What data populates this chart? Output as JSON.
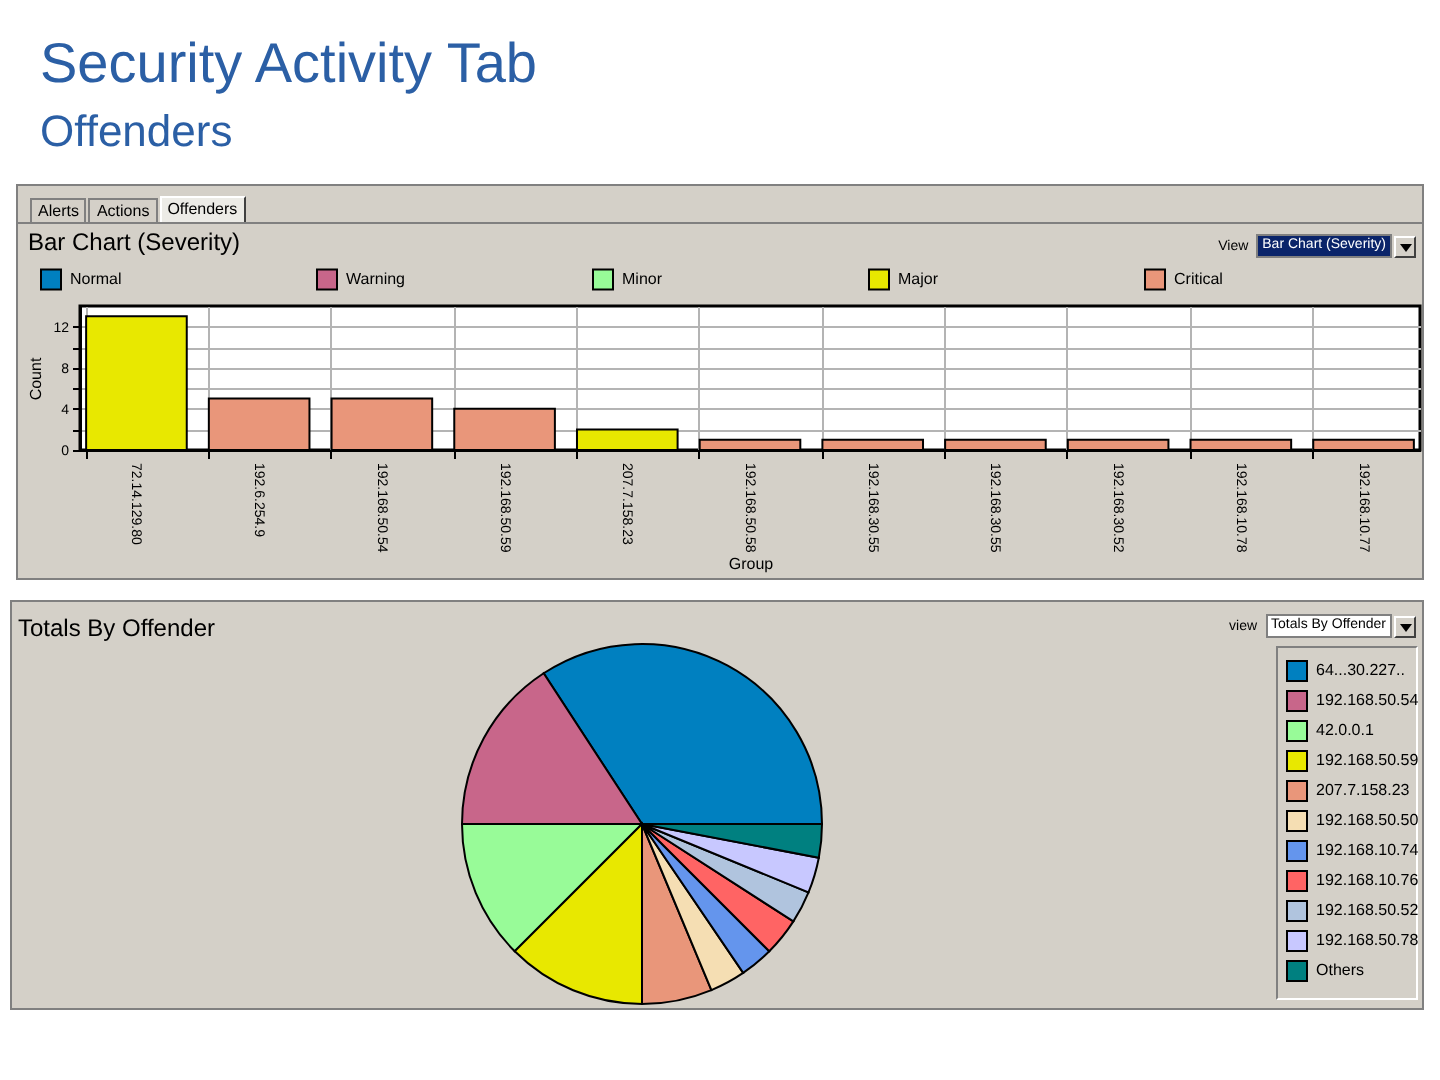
{
  "chart_data": [
    {
      "type": "other",
      "title": "Security Activity Tab",
      "subtitle": "Offenders"
    },
    {
      "type": "bar",
      "title": "Bar Chart (Severity)",
      "categories": [
        "72.14.129.80",
        "192.6.254.9",
        "192.168.50.54",
        "192.168.50.59",
        "207.7.158.23",
        "192.168.50.58",
        "192.168.30.55",
        "192.168.30.55",
        "192.168.30.52",
        "192.168.10.78",
        "192.168.10.77"
      ],
      "series": [
        {
          "name": "Normal",
          "color": "#0080c0",
          "values": [
            null,
            null,
            null,
            null,
            null,
            null,
            null,
            null,
            null,
            null,
            null
          ]
        },
        {
          "name": "Warning",
          "color": "#c8668a",
          "values": [
            null,
            null,
            null,
            null,
            null,
            null,
            null,
            null,
            null,
            null,
            null
          ]
        },
        {
          "name": "Minor",
          "color": "#98fb98",
          "values": [
            null,
            null,
            null,
            null,
            null,
            null,
            null,
            null,
            null,
            null,
            null
          ]
        },
        {
          "name": "Major",
          "color": "#e8e800",
          "values": [
            13,
            null,
            null,
            null,
            2,
            null,
            null,
            null,
            null,
            null,
            null
          ]
        },
        {
          "name": "Critical",
          "color": "#e9967a",
          "values": [
            null,
            5,
            5,
            4,
            null,
            1,
            1,
            1,
            1,
            1,
            1
          ]
        }
      ],
      "stacked": true,
      "xlabel": "Group",
      "ylabel": "Count",
      "ylim": [
        0,
        14
      ],
      "yticks": [
        0,
        {
          "value": 2,
          "label": null
        },
        4,
        {
          "value": 6,
          "label": null
        },
        8,
        {
          "value": 10,
          "label": null
        },
        12
      ],
      "grid": true,
      "legend": "top",
      "annotations": [
        "Alerts",
        "Actions",
        "Offenders",
        "View",
        "Bar Chart (Severity)"
      ]
    },
    {
      "type": "pie",
      "title": "Totals By Offender",
      "categories": [
        "64...30.227..",
        "192.168.50.54",
        "42.0.0.1",
        "192.168.50.59",
        "207.7.158.23",
        "192.168.50.50",
        "192.168.10.74",
        "192.168.10.76",
        "192.168.50.52",
        "192.168.50.78",
        "Others"
      ],
      "values": [
        34.2,
        15.8,
        12.5,
        12.5,
        6.3,
        3.2,
        3.0,
        3.4,
        2.9,
        3.2,
        3.0
      ],
      "colors": [
        "#0080c0",
        "#c8668a",
        "#98fb98",
        "#e8e800",
        "#e9967a",
        "#f5deb3",
        "#6495ed",
        "#ff6464",
        "#b0c4de",
        "#c8c8ff",
        "#008080"
      ],
      "legend": "right",
      "annotations": [
        "view",
        "Totals By Offender"
      ]
    }
  ]
}
